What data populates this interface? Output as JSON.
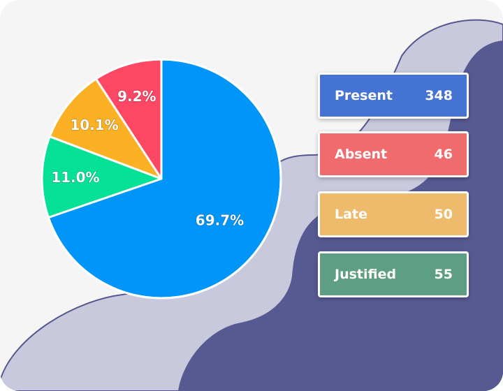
{
  "chart_data": {
    "type": "pie",
    "title": "",
    "slices": [
      {
        "label": "Present",
        "percent_label": "69.7%",
        "value": 348,
        "color": "#0095f8"
      },
      {
        "label": "Justified",
        "percent_label": "11.0%",
        "value": 55,
        "color": "#05e197"
      },
      {
        "label": "Late",
        "percent_label": "10.1%",
        "value": 50,
        "color": "#fcb023"
      },
      {
        "label": "Absent",
        "percent_label": "9.2%",
        "value": 46,
        "color": "#fe4764"
      }
    ]
  },
  "stats": [
    {
      "label": "Present",
      "value": "348",
      "color": "#4473d4"
    },
    {
      "label": "Absent",
      "value": "46",
      "color": "#ef6b6e"
    },
    {
      "label": "Late",
      "value": "50",
      "color": "#eeba6c"
    },
    {
      "label": "Justified",
      "value": "55",
      "color": "#5d9e84"
    }
  ],
  "colors": {
    "background": "#f5f5f5",
    "wave_light": "#c8c9dd",
    "wave_dark": "#575993",
    "wave_outline": "#55588f"
  }
}
